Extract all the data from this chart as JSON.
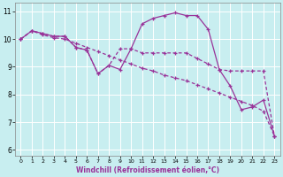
{
  "xlabel": "Windchill (Refroidissement éolien,°C)",
  "background_color": "#c8eef0",
  "line_color": "#993399",
  "grid_color": "#ffffff",
  "xlim_min": -0.5,
  "xlim_max": 23.5,
  "ylim_min": 5.8,
  "ylim_max": 11.3,
  "xticks": [
    0,
    1,
    2,
    3,
    4,
    5,
    6,
    7,
    8,
    9,
    10,
    11,
    12,
    13,
    14,
    15,
    16,
    17,
    18,
    19,
    20,
    21,
    22,
    23
  ],
  "yticks": [
    6,
    7,
    8,
    9,
    10,
    11
  ],
  "x": [
    0,
    1,
    2,
    3,
    4,
    5,
    6,
    7,
    8,
    9,
    10,
    11,
    12,
    13,
    14,
    15,
    16,
    17,
    18,
    19,
    20,
    21,
    22,
    23
  ],
  "line1": [
    10.0,
    10.3,
    10.2,
    10.1,
    10.1,
    9.7,
    9.6,
    8.75,
    9.05,
    8.9,
    9.65,
    10.55,
    10.75,
    10.85,
    10.95,
    10.85,
    10.85,
    10.35,
    8.9,
    8.3,
    7.45,
    7.55,
    7.8,
    6.5
  ],
  "line2": [
    10.0,
    10.3,
    10.2,
    10.1,
    10.1,
    9.7,
    9.6,
    8.75,
    9.05,
    9.65,
    9.65,
    9.5,
    9.5,
    9.5,
    9.5,
    9.5,
    9.3,
    9.1,
    8.9,
    8.85,
    8.85,
    8.85,
    8.85,
    6.5
  ],
  "line3": [
    10.0,
    10.3,
    10.15,
    10.05,
    10.0,
    9.85,
    9.7,
    9.55,
    9.4,
    9.25,
    9.1,
    8.95,
    8.85,
    8.7,
    8.6,
    8.5,
    8.35,
    8.2,
    8.05,
    7.9,
    7.75,
    7.6,
    7.4,
    6.5
  ]
}
